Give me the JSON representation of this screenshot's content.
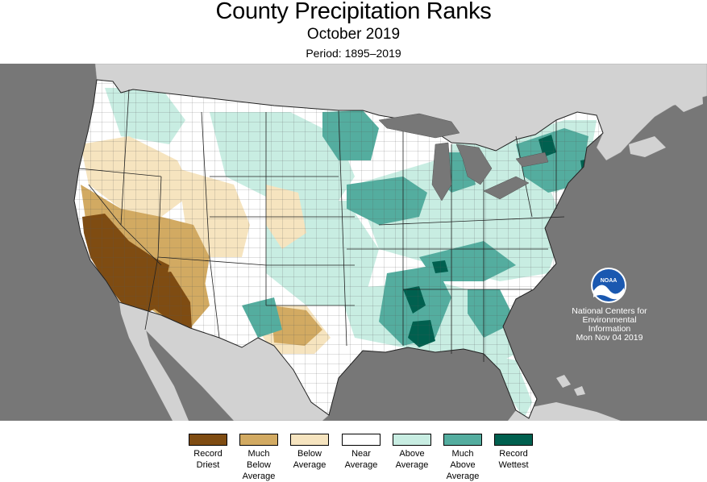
{
  "header": {
    "title": "County Precipitation Ranks",
    "subtitle": "October 2019",
    "period": "Period: 1895–2019"
  },
  "credit": {
    "logo_text": "NOAA",
    "line1": "National Centers for",
    "line2": "Environmental",
    "line3": "Information",
    "date": "Mon Nov 04 2019"
  },
  "legend": [
    {
      "label": "Record\nDriest",
      "color": "#7f4c12"
    },
    {
      "label": "Much\nBelow\nAverage",
      "color": "#d2aa62"
    },
    {
      "label": "Below\nAverage",
      "color": "#f6e4bf"
    },
    {
      "label": "Near\nAverage",
      "color": "#ffffff"
    },
    {
      "label": "Above\nAverage",
      "color": "#c8ede2"
    },
    {
      "label": "Much\nAbove\nAverage",
      "color": "#54ad9f"
    },
    {
      "label": "Record\nWettest",
      "color": "#00604f"
    }
  ],
  "colors": {
    "ocean": "#777777",
    "land_other": "#d2d2d2",
    "lakes": "#777777"
  }
}
